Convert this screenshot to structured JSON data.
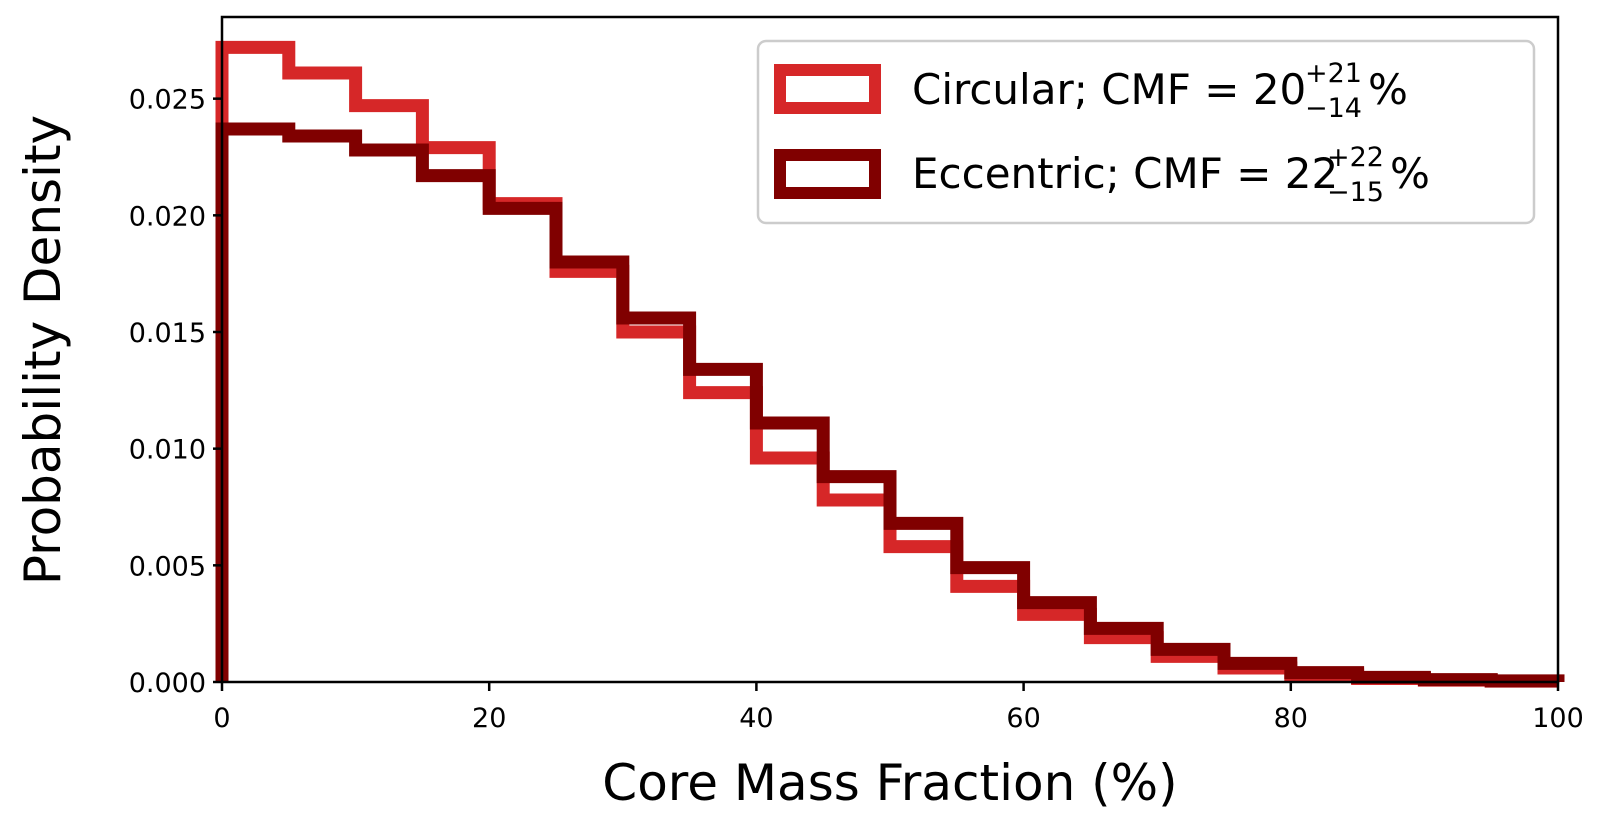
{
  "chart_data": {
    "type": "histogram-step",
    "xlabel": "Core Mass Fraction (%)",
    "ylabel": "Probability Density",
    "xlim": [
      0,
      100
    ],
    "ylim": [
      0,
      0.0285
    ],
    "xticks": [
      0,
      20,
      40,
      60,
      80,
      100
    ],
    "xtick_labels": [
      "0",
      "20",
      "40",
      "60",
      "80",
      "100"
    ],
    "yticks": [
      0.0,
      0.005,
      0.01,
      0.015,
      0.02,
      0.025
    ],
    "ytick_labels": [
      "0.000",
      "0.005",
      "0.010",
      "0.015",
      "0.020",
      "0.025"
    ],
    "bin_edges": [
      0,
      5,
      10,
      15,
      20,
      25,
      30,
      35,
      40,
      45,
      50,
      55,
      60,
      65,
      70,
      75,
      80,
      85,
      90,
      95,
      100
    ],
    "legend_position": "top-right",
    "series": [
      {
        "name": "Circular",
        "legend": {
          "prefix": "Circular; CMF = 20",
          "sup": "+21",
          "sub": "−14",
          "suffix": "%"
        },
        "color": "#d62728",
        "values": [
          0.0272,
          0.0261,
          0.0247,
          0.0229,
          0.0205,
          0.0176,
          0.015,
          0.0124,
          0.0096,
          0.0078,
          0.0058,
          0.0041,
          0.0029,
          0.0019,
          0.0011,
          0.0006,
          0.0003,
          0.00015,
          8e-05,
          4e-05
        ]
      },
      {
        "name": "Eccentric",
        "legend": {
          "prefix": "Eccentric; CMF = 22",
          "sup": "+22",
          "sub": "−15",
          "suffix": "%"
        },
        "color": "#800000",
        "values": [
          0.0237,
          0.0234,
          0.0228,
          0.0217,
          0.0203,
          0.018,
          0.0156,
          0.0134,
          0.0111,
          0.0088,
          0.0068,
          0.0049,
          0.0034,
          0.0023,
          0.0014,
          0.0008,
          0.0004,
          0.0002,
          0.0001,
          5e-05
        ]
      }
    ]
  }
}
